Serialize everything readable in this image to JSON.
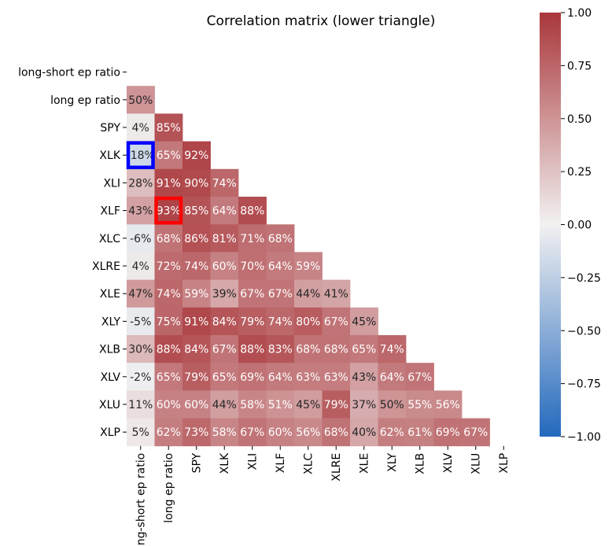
{
  "chart_data": {
    "type": "heatmap",
    "title": "Correlation matrix (lower triangle)",
    "labels": [
      "long-short ep ratio",
      "long ep ratio",
      "SPY",
      "XLK",
      "XLI",
      "XLF",
      "XLC",
      "XLRE",
      "XLE",
      "XLY",
      "XLB",
      "XLV",
      "XLU",
      "XLP"
    ],
    "lower_triangle_percent": [
      [],
      [
        50
      ],
      [
        4,
        85
      ],
      [
        -18,
        65,
        92
      ],
      [
        28,
        91,
        90,
        74
      ],
      [
        43,
        93,
        85,
        64,
        88
      ],
      [
        -6,
        68,
        86,
        81,
        71,
        68
      ],
      [
        4,
        72,
        74,
        60,
        70,
        64,
        59
      ],
      [
        47,
        74,
        59,
        39,
        67,
        67,
        44,
        41
      ],
      [
        -5,
        75,
        91,
        84,
        79,
        74,
        80,
        67,
        45
      ],
      [
        30,
        88,
        84,
        67,
        88,
        83,
        68,
        68,
        65,
        74
      ],
      [
        -2,
        65,
        79,
        65,
        69,
        64,
        63,
        63,
        43,
        64,
        67
      ],
      [
        11,
        60,
        60,
        44,
        58,
        51,
        45,
        79,
        37,
        50,
        55,
        56
      ],
      [
        5,
        62,
        73,
        58,
        67,
        60,
        56,
        68,
        40,
        62,
        61,
        69,
        67
      ]
    ],
    "value_format": "percent",
    "colormap": "vlag",
    "vmin": -1.0,
    "vmax": 1.0,
    "colorbar_ticks": [
      "1.00",
      "0.75",
      "0.50",
      "0.25",
      "0.00",
      "−0.25",
      "−0.50",
      "−0.75",
      "−1.00"
    ],
    "colorbar_tick_values": [
      1.0,
      0.75,
      0.5,
      0.25,
      0.0,
      -0.25,
      -0.5,
      -0.75,
      -1.0
    ],
    "highlights": [
      {
        "row": 3,
        "col": 0,
        "color": "#0000ff"
      },
      {
        "row": 5,
        "col": 1,
        "color": "#ff0000"
      }
    ],
    "colors": {
      "low": "#2369bd",
      "mid": "#f2f1f1",
      "high": "#a9373b"
    }
  }
}
